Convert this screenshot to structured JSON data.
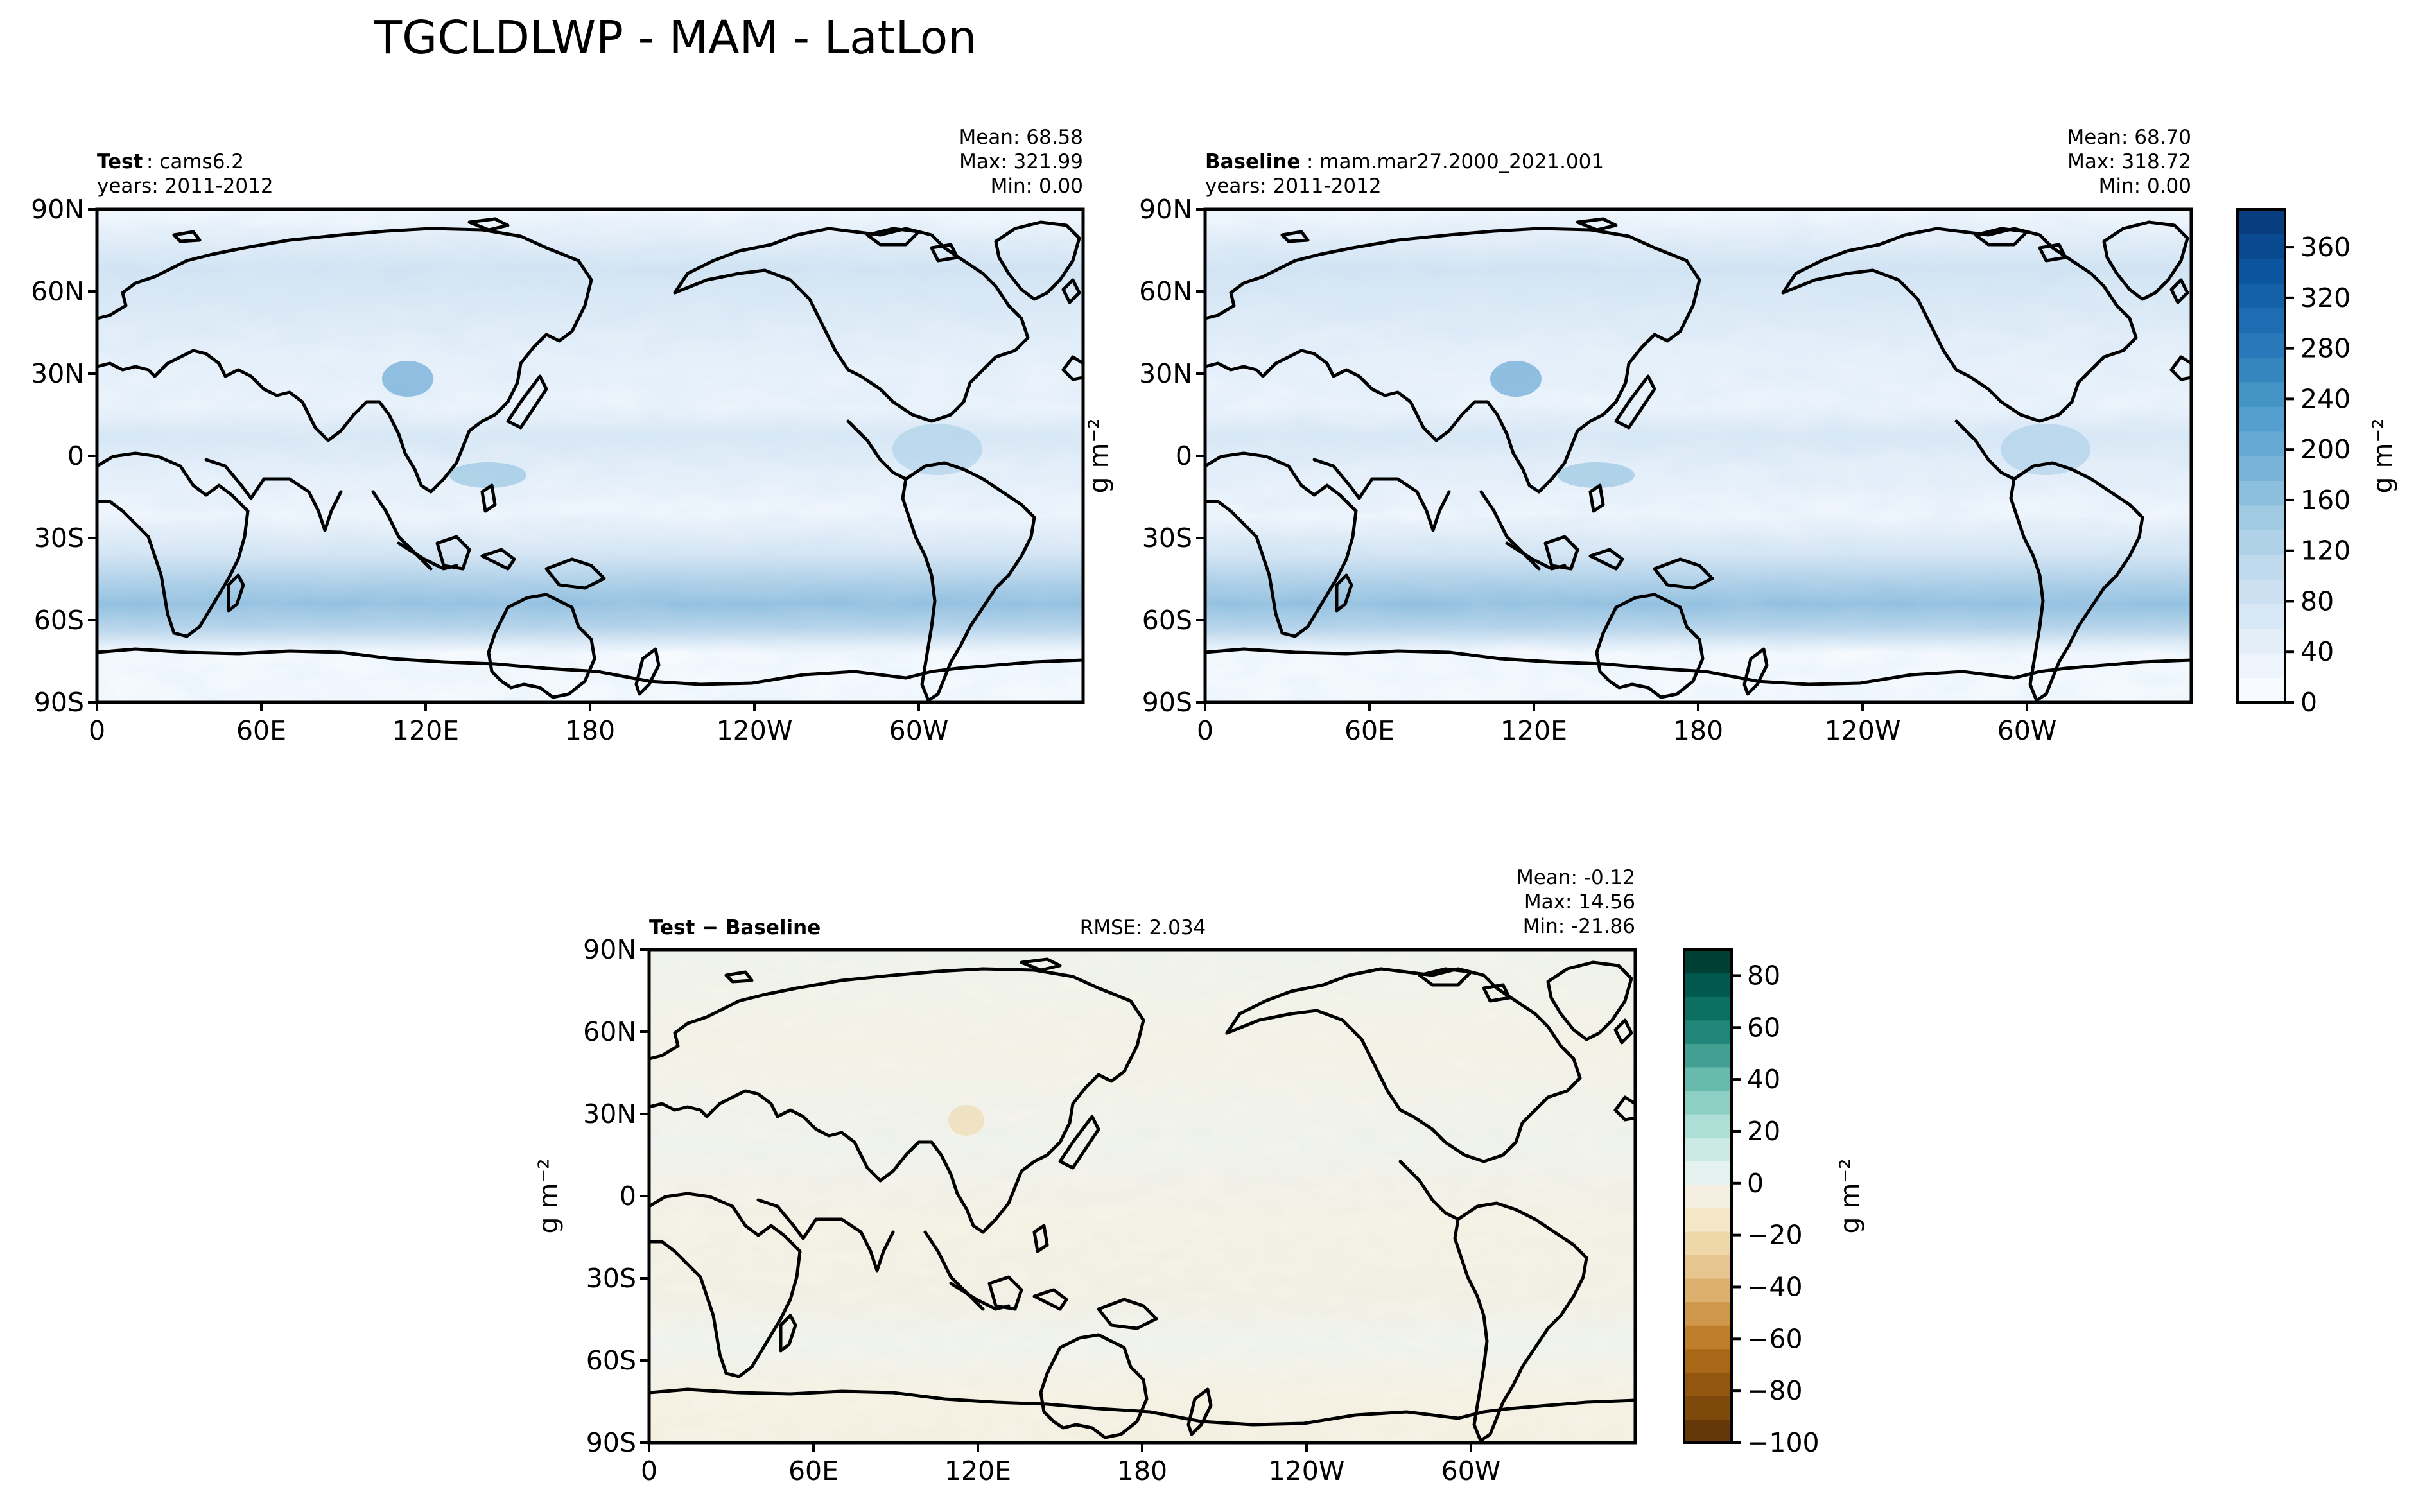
{
  "chart_data": {
    "type": "heatmap",
    "title": "TGCLDLWP - MAM - LatLon",
    "panels": [
      {
        "id": "test",
        "label_bold": "Test",
        "label_text": ": cams6.2",
        "years": "years: 2011-2012",
        "stats": [
          "Mean: 68.58",
          "Max: 321.99",
          "Min:  0.00"
        ],
        "colormap": "Blues"
      },
      {
        "id": "baseline",
        "label_bold": "Baseline",
        "label_text": ": mam.mar27.2000_2021.001",
        "years": "years: 2011-2012",
        "stats": [
          "Mean: 68.70",
          "Max: 318.72",
          "Min:  0.00"
        ],
        "colormap": "Blues"
      },
      {
        "id": "diff",
        "label_bold": "Test − Baseline",
        "rmse": "RMSE: 2.034",
        "stats": [
          "Mean: -0.12",
          "Max: 14.56",
          "Min: -21.86"
        ],
        "colormap": "BrBG"
      }
    ],
    "lat_ticks": [
      "90N",
      "60N",
      "30N",
      "0",
      "30S",
      "60S",
      "90S"
    ],
    "lon_ticks": [
      "0",
      "60E",
      "120E",
      "180",
      "120W",
      "60W"
    ],
    "lat_range": [
      -90,
      90
    ],
    "lon_range": [
      0,
      360
    ],
    "ylabel": "g m⁻²",
    "colorbar_top": {
      "label": "g m⁻²",
      "range": [
        0,
        390
      ],
      "ticks": [
        0,
        40,
        80,
        120,
        160,
        200,
        240,
        280,
        320,
        360
      ],
      "tick_labels": [
        "0",
        "40",
        "80",
        "120",
        "160",
        "200",
        "240",
        "280",
        "320",
        "360"
      ],
      "colors": [
        "#f7fbff",
        "#eef5fc",
        "#e3eef9",
        "#d8e7f5",
        "#cde0f1",
        "#c0d9ed",
        "#b0d2e8",
        "#9fcae1",
        "#8cbfdd",
        "#78b4d9",
        "#65a9d3",
        "#549fcd",
        "#4393c4",
        "#3586bf",
        "#2879b9",
        "#1e6db2",
        "#1461a8",
        "#0b559f",
        "#084990",
        "#083d7f"
      ]
    },
    "colorbar_diff": {
      "label": "g m⁻²",
      "range": [
        -100,
        90
      ],
      "ticks": [
        80,
        60,
        40,
        20,
        0,
        -20,
        -40,
        -60,
        -80,
        -100
      ],
      "tick_labels": [
        "80",
        "60",
        "40",
        "20",
        "0",
        "−20",
        "−40",
        "−60",
        "−80",
        "−100"
      ],
      "colors": [
        "#653809",
        "#7d4a0b",
        "#93560f",
        "#a96718",
        "#bf7e2b",
        "#cf974b",
        "#dcb16f",
        "#e6c68e",
        "#eed8aa",
        "#f4e7c8",
        "#f4efe0",
        "#e3f1ef",
        "#cbeae4",
        "#aedfd6",
        "#8dd0c3",
        "#68bbac",
        "#42a093",
        "#218679",
        "#0d6e62",
        "#01594d",
        "#003f33"
      ]
    }
  }
}
